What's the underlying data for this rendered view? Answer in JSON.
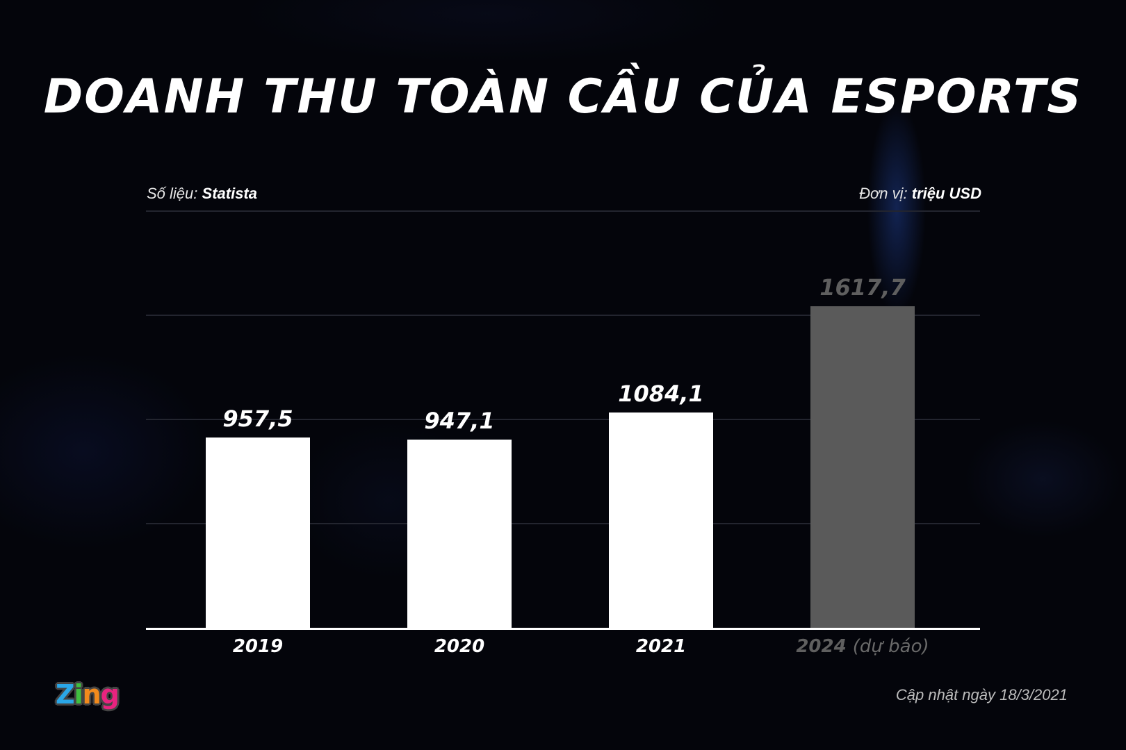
{
  "header": {
    "title": "DOANH THU TOÀN CẦU CỦA ESPORTS"
  },
  "meta": {
    "source_label": "Số liệu:",
    "source_value": "Statista",
    "unit_label": "Đơn vị:",
    "unit_value": "triệu USD"
  },
  "bars": [
    {
      "year": "2019",
      "note": "",
      "value": 957.5,
      "label": "957,5",
      "color": "#ffffff",
      "label_color": "#ffffff",
      "year_color": "#ffffff"
    },
    {
      "year": "2020",
      "note": "",
      "value": 947.1,
      "label": "947,1",
      "color": "#ffffff",
      "label_color": "#ffffff",
      "year_color": "#ffffff"
    },
    {
      "year": "2021",
      "note": "",
      "value": 1084.1,
      "label": "1084,1",
      "color": "#ffffff",
      "label_color": "#ffffff",
      "year_color": "#ffffff"
    },
    {
      "year": "2024",
      "note": "(dự báo)",
      "value": 1617.7,
      "label": "1617,7",
      "color": "#5a5a5a",
      "label_color": "#5f5f5f",
      "year_color": "#5f5f5f"
    }
  ],
  "footer": {
    "logo": {
      "letters": [
        "Z",
        "i",
        "n",
        "g"
      ],
      "colors": [
        "#2aa7e8",
        "#3fbf3f",
        "#f28a1c",
        "#e8237f"
      ]
    },
    "updated": "Cập nhật ngày 18/3/2021"
  },
  "chart_data": {
    "type": "bar",
    "title": "DOANH THU TOÀN CẦU CỦA ESPORTS",
    "categories": [
      "2019",
      "2020",
      "2021",
      "2024 (dự báo)"
    ],
    "values": [
      957.5,
      947.1,
      1084.1,
      1617.7
    ],
    "xlabel": "",
    "ylabel": "triệu USD",
    "source": "Statista",
    "unit": "triệu USD",
    "ylim": [
      0,
      2000
    ],
    "grid": true,
    "legend": null,
    "annotations": [
      "2024 là dự báo (cột màu xám)",
      "Cập nhật ngày 18/3/2021"
    ]
  }
}
